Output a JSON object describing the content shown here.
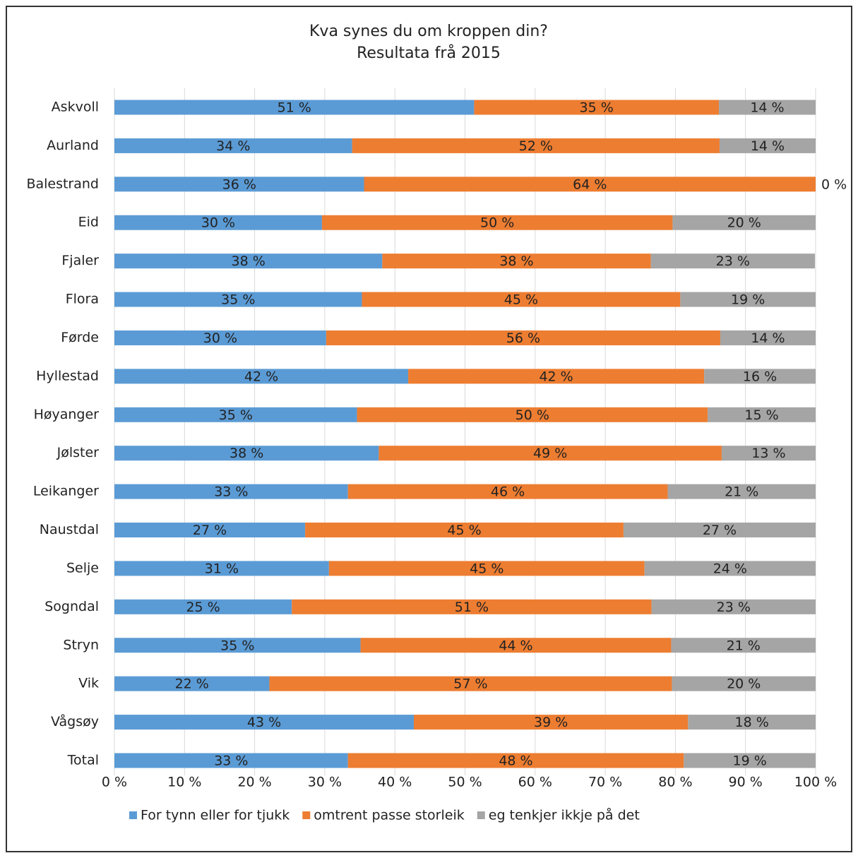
{
  "chart_data": {
    "type": "stacked_barh",
    "title": "Kva synes du om kroppen din?",
    "subtitle": "Resultata frå 2015",
    "categories": [
      "Askvoll",
      "Aurland",
      "Balestrand",
      "Eid",
      "Fjaler",
      "Flora",
      "Førde",
      "Hyllestad",
      "Høyanger",
      "Jølster",
      "Leikanger",
      "Naustdal",
      "Selje",
      "Sogndal",
      "Stryn",
      "Vik",
      "Vågsøy",
      "Total"
    ],
    "series": [
      {
        "name": "For tynn eller for tjukk",
        "color": "#5b9bd5",
        "values": [
          51.3,
          33.9,
          35.6,
          29.6,
          38.2,
          35.3,
          30.2,
          41.9,
          34.6,
          37.7,
          33.3,
          27.2,
          30.6,
          25.3,
          35.1,
          22.1,
          42.7,
          33.3
        ],
        "value_labels": [
          "51 %",
          "34 %",
          "36 %",
          "30 %",
          "38 %",
          "35 %",
          "30 %",
          "42 %",
          "35 %",
          "38 %",
          "33 %",
          "27 %",
          "31 %",
          "25 %",
          "35 %",
          "22 %",
          "43 %",
          "33 %"
        ]
      },
      {
        "name": "omtrent passe storleik",
        "color": "#ed7d31",
        "values": [
          34.9,
          52.4,
          64.4,
          50.0,
          38.3,
          45.4,
          56.2,
          42.2,
          50.0,
          48.9,
          45.6,
          45.4,
          45.0,
          51.3,
          44.3,
          57.4,
          39.1,
          47.9
        ],
        "value_labels": [
          "35 %",
          "52 %",
          "64 %",
          "50 %",
          "38 %",
          "45 %",
          "56 %",
          "42 %",
          "50 %",
          "49 %",
          "46 %",
          "45 %",
          "45 %",
          "51 %",
          "44 %",
          "57 %",
          "39 %",
          "48 %"
        ]
      },
      {
        "name": "eg tenkjer ikkje på det",
        "color": "#a5a5a5",
        "values": [
          13.8,
          13.7,
          0,
          20.4,
          23.4,
          19.3,
          13.6,
          15.9,
          15.4,
          13.4,
          21.1,
          27.4,
          24.4,
          23.4,
          20.6,
          20.5,
          18.2,
          18.8
        ],
        "value_labels": [
          "14 %",
          "14 %",
          "0 %",
          "20 %",
          "23 %",
          "19 %",
          "14 %",
          "16 %",
          "15 %",
          "13 %",
          "21 %",
          "27 %",
          "24 %",
          "23 %",
          "21 %",
          "20 %",
          "18 %",
          "19 %"
        ]
      }
    ],
    "xlim": [
      0,
      100
    ],
    "xticks": [
      {
        "value": 0,
        "label": "0 %"
      },
      {
        "value": 10,
        "label": "10 %"
      },
      {
        "value": 20,
        "label": "20 %"
      },
      {
        "value": 30,
        "label": "30 %"
      },
      {
        "value": 40,
        "label": "40 %"
      },
      {
        "value": 50,
        "label": "50 %"
      },
      {
        "value": 60,
        "label": "60 %"
      },
      {
        "value": 70,
        "label": "70 %"
      },
      {
        "value": 80,
        "label": "80 %"
      },
      {
        "value": 90,
        "label": "90 %"
      },
      {
        "value": 100,
        "label": "100 %"
      }
    ],
    "grid": true,
    "legend": "bottom"
  }
}
